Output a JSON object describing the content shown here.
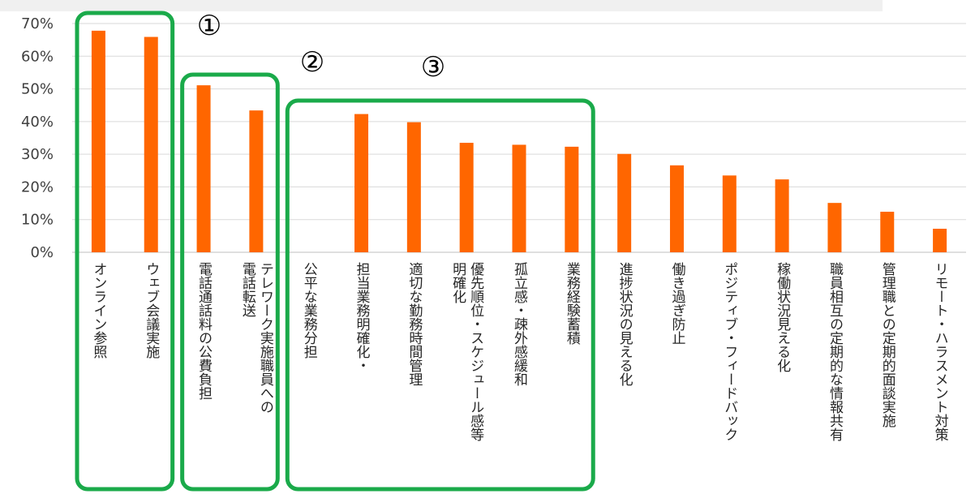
{
  "chart_data": {
    "type": "bar",
    "categories": [
      "オンライン参照",
      "ウェブ会議実施",
      "電話通話料の公費負担",
      "テレワーク実施職員への電話転送",
      "公平な業務分担",
      "担当業務明確化・",
      "適切な勤務時間管理",
      "優先順位・スケジュール感等明確化",
      "孤立感・疎外感緩和",
      "業務経験蓄積",
      "進捗状況の見える化",
      "働き過ぎ防止",
      "ポジティブ・フィードバック",
      "稼働状況見える化",
      "職員相互の定期的な情報共有",
      "管理職との定期的面談実施",
      "リモート・ハラスメント対策"
    ],
    "label_lines": [
      [
        "オンライン参照"
      ],
      [
        "ウェブ会議実施"
      ],
      [
        "電話通話料の公費負担"
      ],
      [
        "テレワーク実施職員への",
        "電話転送"
      ],
      [
        "公平な業務分担"
      ],
      [
        "担当業務明確化・"
      ],
      [
        "適切な勤務時間管理"
      ],
      [
        "優先順位・スケジュール感等",
        "明確化"
      ],
      [
        "孤立感・疎外感緩和"
      ],
      [
        "業務経験蓄積"
      ],
      [
        "進捗状況の見える化"
      ],
      [
        "働き過ぎ防止"
      ],
      [
        "ポジティブ・フィードバック"
      ],
      [
        "稼働状況見える化"
      ],
      [
        "職員相互の定期的な情報共有"
      ],
      [
        "管理職との定期的面談実施"
      ],
      [
        "リモート・ハラスメント対策"
      ]
    ],
    "bar_values": [
      67.8,
      65.9,
      51.1,
      43.4,
      null,
      42.3,
      39.8,
      33.5,
      32.9,
      32.3,
      30.1,
      26.6,
      23.5,
      22.3,
      15.1,
      12.4,
      7.2
    ],
    "y_ticks": [
      "0%",
      "10%",
      "20%",
      "30%",
      "40%",
      "50%",
      "60%",
      "70%"
    ],
    "ylim": [
      0,
      70
    ],
    "bar_color": "#ff6600",
    "grid": true,
    "group_color": "#1aaa4a",
    "groups": [
      {
        "label": "①",
        "from": 0,
        "to": 1
      },
      {
        "label": "②",
        "from": 2,
        "to": 3
      },
      {
        "label": "③",
        "from": 4,
        "to": 9
      }
    ]
  }
}
